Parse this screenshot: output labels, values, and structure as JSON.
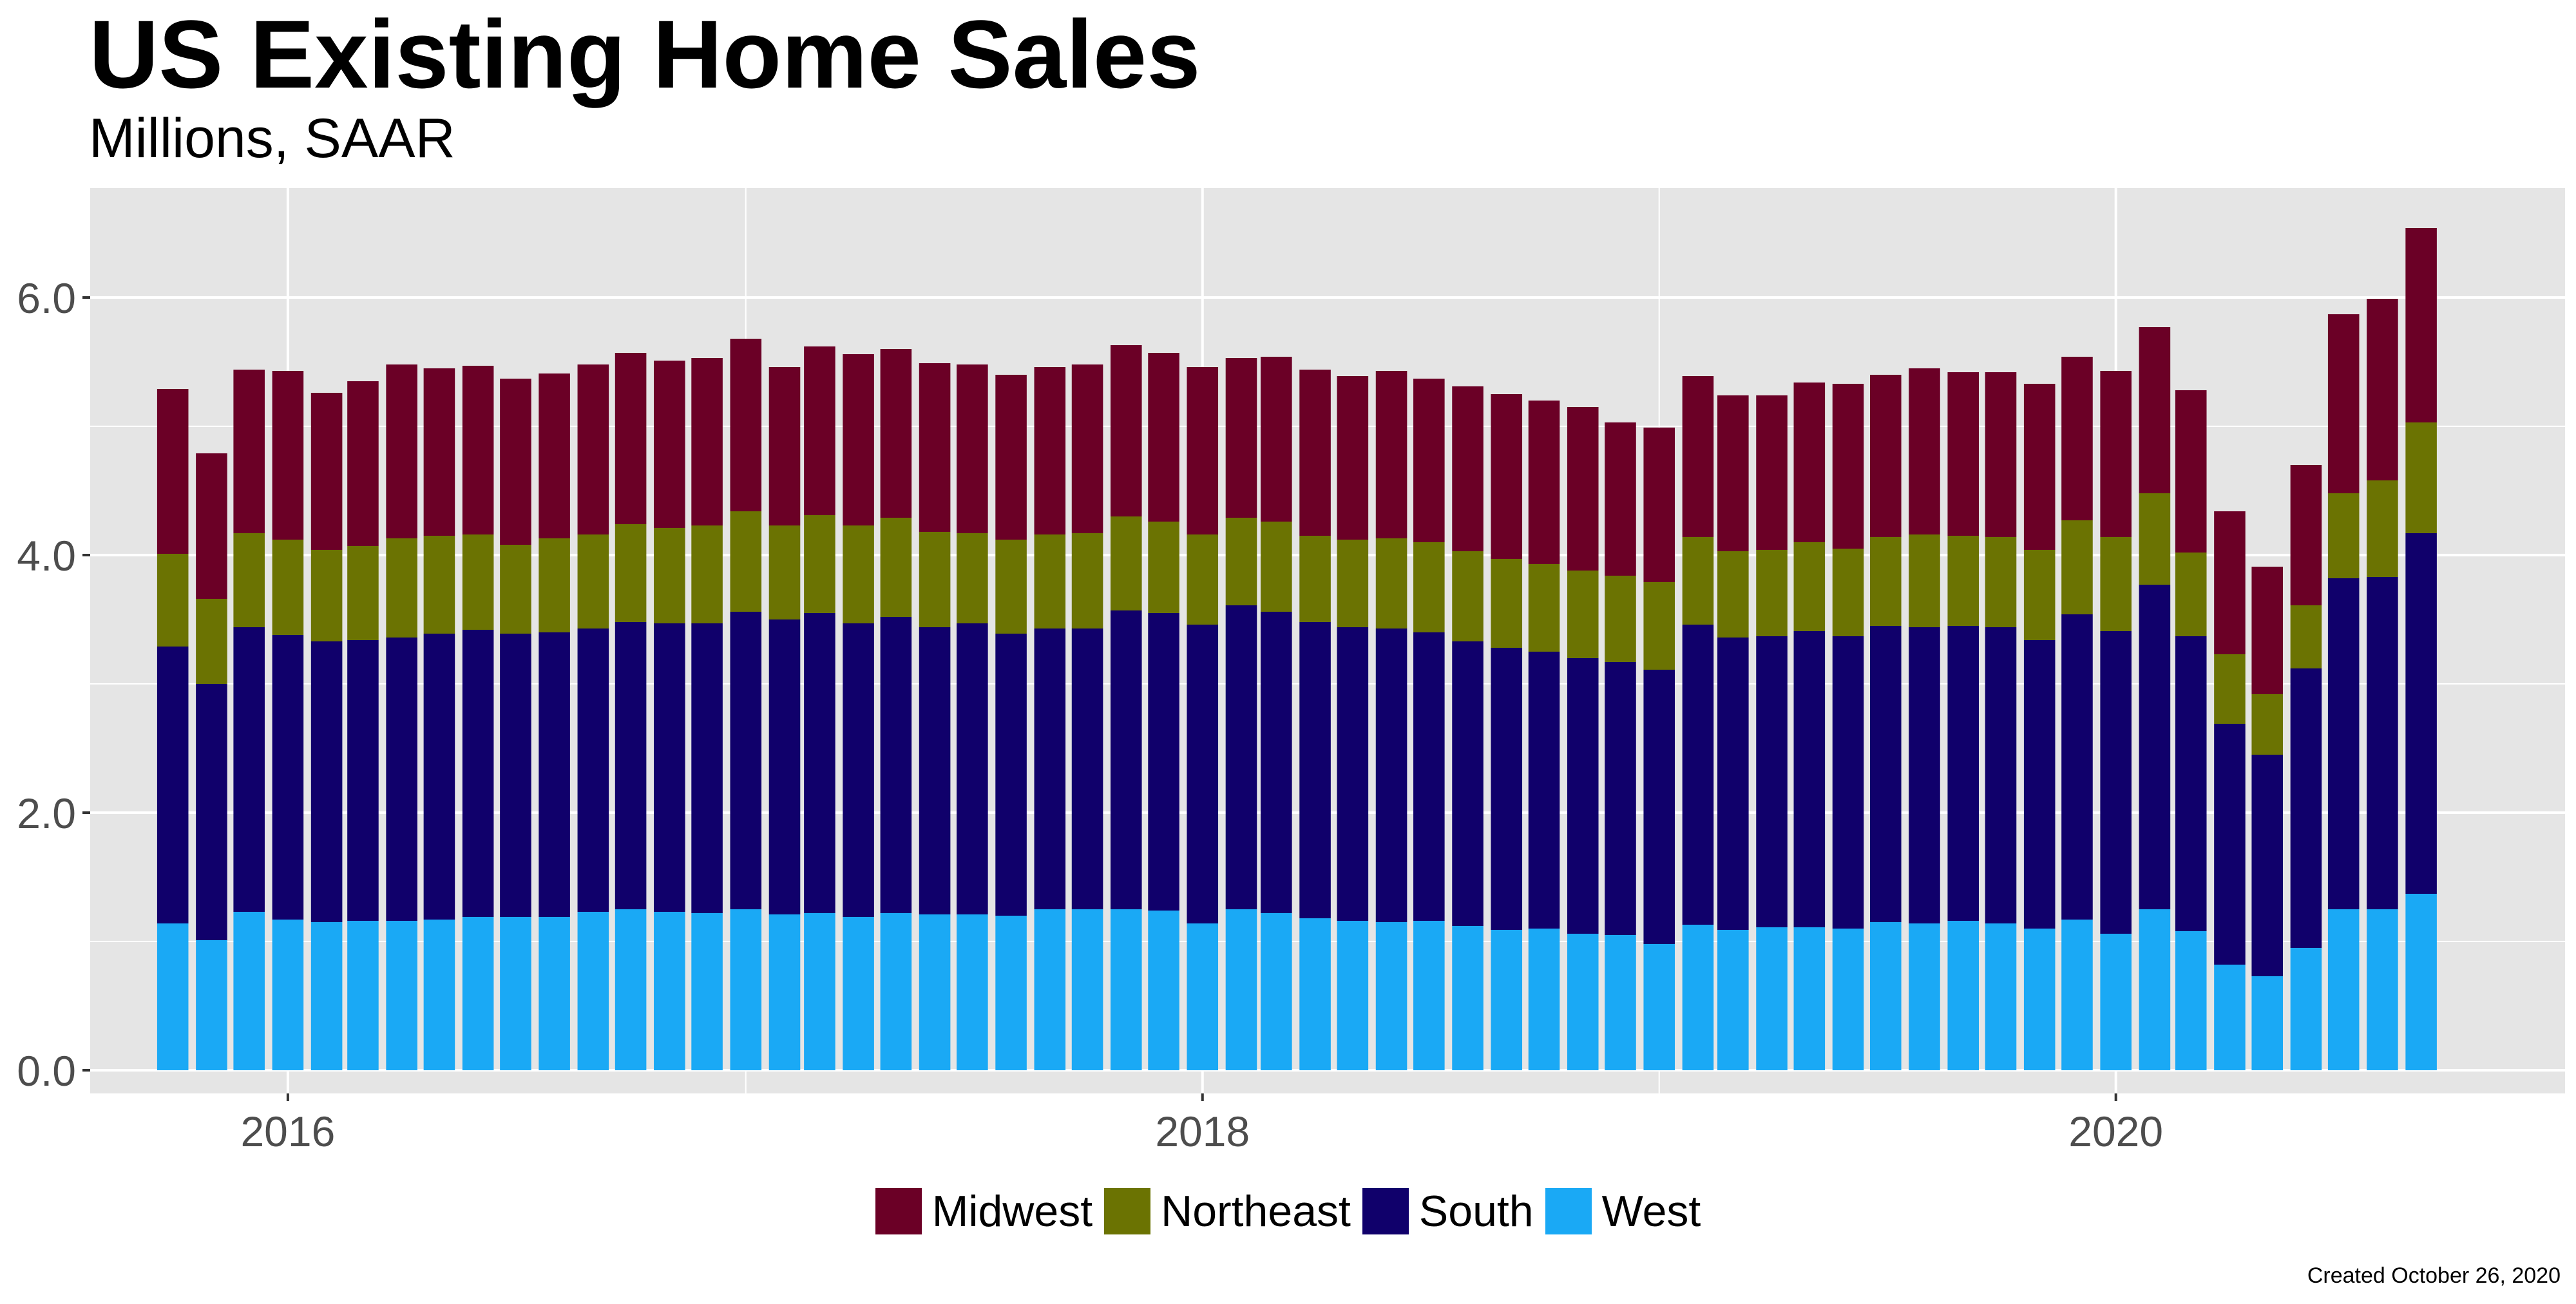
{
  "header": {
    "title": "US Existing Home Sales",
    "subtitle": "Millions, SAAR"
  },
  "caption": "Created October 26, 2020",
  "colors": {
    "panel_bg": "#E5E5E5",
    "grid": "#FFFFFF",
    "Midwest": "#6B0026",
    "Northeast": "#6B7302",
    "South": "#10006B",
    "West": "#1AA9F5"
  },
  "legend": {
    "position": "bottom",
    "items": [
      {
        "label": "Midwest",
        "color": "#6B0026"
      },
      {
        "label": "Northeast",
        "color": "#6B7302"
      },
      {
        "label": "South",
        "color": "#10006B"
      },
      {
        "label": "West",
        "color": "#1AA9F5"
      }
    ]
  },
  "chart_data": {
    "type": "bar",
    "stacked": true,
    "title": "US Existing Home Sales",
    "subtitle": "Millions, SAAR",
    "xlabel": "",
    "ylabel": "",
    "ylim": [
      -0.18,
      6.85
    ],
    "yticks": [
      "0.0",
      "2.0",
      "4.0",
      "6.0"
    ],
    "ytick_values": [
      0,
      2,
      4,
      6
    ],
    "xlim": [
      "2015-07-27",
      "2020-12-25"
    ],
    "xticks": [
      "2016",
      "2018",
      "2020"
    ],
    "xtick_dates": [
      "2016-01-01",
      "2018-01-01",
      "2020-01-01"
    ],
    "grid": true,
    "categories": [
      "2015-10",
      "2015-11",
      "2015-12",
      "2016-01",
      "2016-02",
      "2016-03",
      "2016-04",
      "2016-05",
      "2016-06",
      "2016-07",
      "2016-08",
      "2016-09",
      "2016-10",
      "2016-11",
      "2016-12",
      "2017-01",
      "2017-02",
      "2017-03",
      "2017-04",
      "2017-05",
      "2017-06",
      "2017-07",
      "2017-08",
      "2017-09",
      "2017-10",
      "2017-11",
      "2017-12",
      "2018-01",
      "2018-02",
      "2018-03",
      "2018-04",
      "2018-05",
      "2018-06",
      "2018-07",
      "2018-08",
      "2018-09",
      "2018-10",
      "2018-11",
      "2018-12",
      "2019-01",
      "2019-02",
      "2019-03",
      "2019-04",
      "2019-05",
      "2019-06",
      "2019-07",
      "2019-08",
      "2019-09",
      "2019-10",
      "2019-11",
      "2019-12",
      "2020-01",
      "2020-02",
      "2020-03",
      "2020-04",
      "2020-05",
      "2020-06",
      "2020-07",
      "2020-08",
      "2020-09"
    ],
    "series": [
      {
        "name": "West",
        "values": [
          1.14,
          1.01,
          1.23,
          1.17,
          1.15,
          1.16,
          1.16,
          1.17,
          1.19,
          1.19,
          1.19,
          1.23,
          1.25,
          1.23,
          1.22,
          1.25,
          1.21,
          1.22,
          1.19,
          1.22,
          1.21,
          1.21,
          1.2,
          1.25,
          1.25,
          1.25,
          1.24,
          1.14,
          1.25,
          1.22,
          1.18,
          1.16,
          1.15,
          1.16,
          1.12,
          1.09,
          1.1,
          1.06,
          1.05,
          0.98,
          1.13,
          1.09,
          1.11,
          1.11,
          1.1,
          1.15,
          1.14,
          1.16,
          1.14,
          1.1,
          1.17,
          1.06,
          1.25,
          1.08,
          0.82,
          0.73,
          0.95,
          1.25,
          1.25,
          1.37
        ]
      },
      {
        "name": "South",
        "values": [
          2.15,
          1.99,
          2.21,
          2.21,
          2.18,
          2.18,
          2.2,
          2.22,
          2.23,
          2.2,
          2.21,
          2.2,
          2.23,
          2.24,
          2.25,
          2.31,
          2.29,
          2.33,
          2.28,
          2.3,
          2.23,
          2.26,
          2.19,
          2.18,
          2.18,
          2.32,
          2.31,
          2.32,
          2.36,
          2.34,
          2.3,
          2.28,
          2.28,
          2.24,
          2.21,
          2.19,
          2.15,
          2.14,
          2.12,
          2.13,
          2.33,
          2.27,
          2.26,
          2.3,
          2.27,
          2.3,
          2.3,
          2.29,
          2.3,
          2.24,
          2.37,
          2.35,
          2.52,
          2.29,
          1.87,
          1.72,
          2.17,
          2.57,
          2.58,
          2.8
        ]
      },
      {
        "name": "Northeast",
        "values": [
          0.72,
          0.66,
          0.73,
          0.74,
          0.71,
          0.73,
          0.77,
          0.76,
          0.74,
          0.69,
          0.73,
          0.73,
          0.76,
          0.74,
          0.76,
          0.78,
          0.73,
          0.76,
          0.76,
          0.77,
          0.74,
          0.7,
          0.73,
          0.73,
          0.74,
          0.73,
          0.71,
          0.7,
          0.68,
          0.7,
          0.67,
          0.68,
          0.7,
          0.7,
          0.7,
          0.69,
          0.68,
          0.68,
          0.67,
          0.68,
          0.68,
          0.67,
          0.67,
          0.69,
          0.68,
          0.69,
          0.72,
          0.7,
          0.7,
          0.7,
          0.73,
          0.73,
          0.71,
          0.65,
          0.54,
          0.47,
          0.49,
          0.66,
          0.75,
          0.86
        ]
      },
      {
        "name": "Midwest",
        "values": [
          1.28,
          1.13,
          1.27,
          1.31,
          1.22,
          1.28,
          1.35,
          1.3,
          1.31,
          1.29,
          1.28,
          1.32,
          1.33,
          1.3,
          1.3,
          1.34,
          1.23,
          1.31,
          1.33,
          1.31,
          1.31,
          1.31,
          1.28,
          1.3,
          1.31,
          1.33,
          1.31,
          1.3,
          1.24,
          1.28,
          1.29,
          1.27,
          1.3,
          1.27,
          1.28,
          1.28,
          1.27,
          1.27,
          1.19,
          1.2,
          1.25,
          1.21,
          1.2,
          1.24,
          1.28,
          1.26,
          1.29,
          1.27,
          1.28,
          1.29,
          1.27,
          1.29,
          1.29,
          1.26,
          1.11,
          0.99,
          1.09,
          1.39,
          1.41,
          1.51
        ]
      }
    ]
  }
}
